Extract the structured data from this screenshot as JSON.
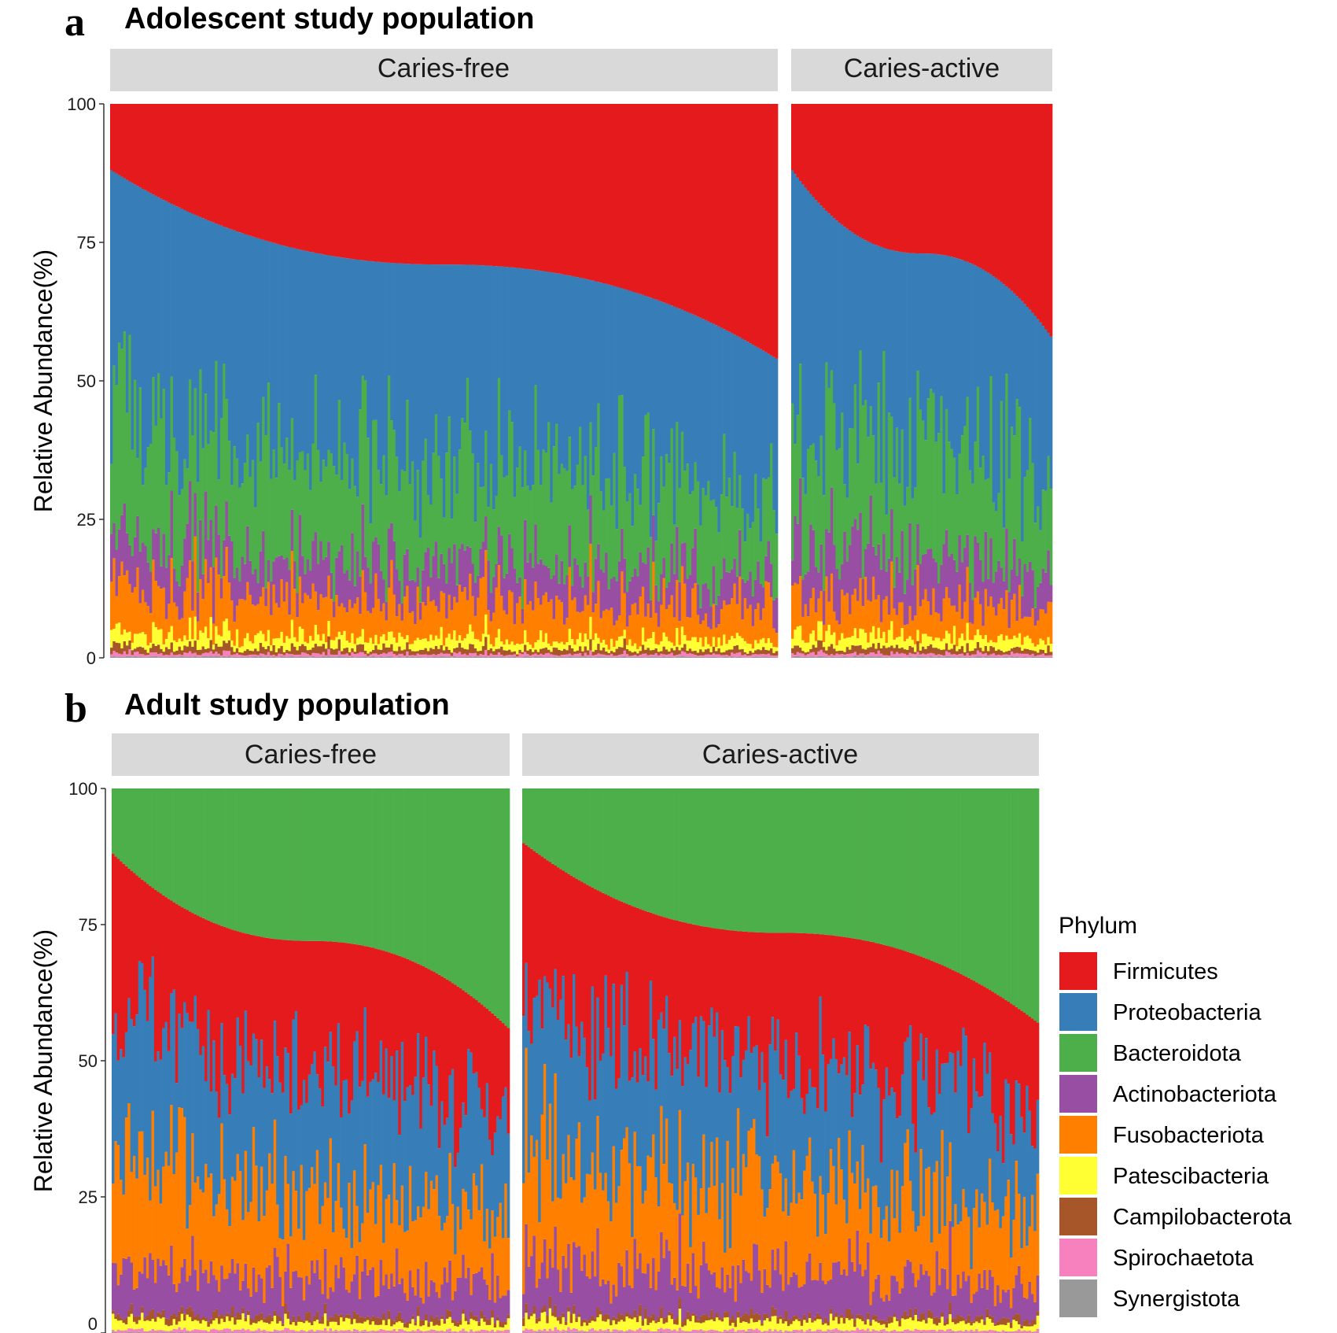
{
  "chart_data": [
    {
      "type": "bar",
      "stacked": true,
      "panel_letter": "a",
      "title": "Adolescent study population",
      "ylabel": "Relative Abundance(%)",
      "ylim": [
        0,
        100
      ],
      "yticks": [
        "0",
        "25",
        "50",
        "75",
        "100"
      ],
      "facets": [
        {
          "label": "Caries-free",
          "samples": 255,
          "firmicutes_sorted_min": 12,
          "firmicutes_sorted_max": 46,
          "mean_composition": {
            "Firmicutes": 28,
            "Proteobacteria": 36,
            "Bacteroidota": 19,
            "Actinobacteriota": 7,
            "Fusobacteriota": 7,
            "Patescibacteria": 2,
            "Campilobacterota": 1,
            "Spirochaetota": 0.5,
            "Synergistota": 0.2
          }
        },
        {
          "label": "Caries-active",
          "samples": 100,
          "firmicutes_sorted_min": 12,
          "firmicutes_sorted_max": 42,
          "mean_composition": {
            "Firmicutes": 28,
            "Proteobacteria": 36,
            "Bacteroidota": 19,
            "Actinobacteriota": 8,
            "Fusobacteriota": 6,
            "Patescibacteria": 2,
            "Campilobacterota": 1,
            "Spirochaetota": 0.5,
            "Synergistota": 0.2
          }
        }
      ]
    },
    {
      "type": "bar",
      "stacked": true,
      "panel_letter": "b",
      "title": "Adult study population",
      "ylabel": "Relative Abundance(%)",
      "ylim": [
        0,
        100
      ],
      "yticks": [
        "0",
        "25",
        "50",
        "75",
        "100"
      ],
      "facets": [
        {
          "label": "Caries-free",
          "samples": 150,
          "bacteroidota_sorted_min": 12,
          "bacteroidota_sorted_max": 44,
          "mean_composition": {
            "Bacteroidota": 31,
            "Firmicutes": 22,
            "Proteobacteria": 22,
            "Fusobacteriota": 15,
            "Actinobacteriota": 7,
            "Patescibacteria": 1.5,
            "Campilobacterota": 1,
            "Spirochaetota": 0.4,
            "Synergistota": 0.1
          }
        },
        {
          "label": "Caries-active",
          "samples": 195,
          "bacteroidota_sorted_min": 10,
          "bacteroidota_sorted_max": 43,
          "mean_composition": {
            "Bacteroidota": 31,
            "Firmicutes": 22,
            "Proteobacteria": 22,
            "Fusobacteriota": 15,
            "Actinobacteriota": 7,
            "Patescibacteria": 1.5,
            "Campilobacterota": 1,
            "Spirochaetota": 0.4,
            "Synergistota": 0.1
          }
        }
      ]
    }
  ],
  "legend": {
    "title": "Phylum",
    "items": [
      {
        "name": "Firmicutes",
        "color": "#E41A1C"
      },
      {
        "name": "Proteobacteria",
        "color": "#377EB8"
      },
      {
        "name": "Bacteroidota",
        "color": "#4DAF4A"
      },
      {
        "name": "Actinobacteriota",
        "color": "#984EA3"
      },
      {
        "name": "Fusobacteriota",
        "color": "#FF7F00"
      },
      {
        "name": "Patescibacteria",
        "color": "#FFFF33"
      },
      {
        "name": "Campilobacterota",
        "color": "#A65628"
      },
      {
        "name": "Spirochaetota",
        "color": "#F781BF"
      },
      {
        "name": "Synergistota",
        "color": "#999999"
      }
    ]
  },
  "colors": {
    "strip_background": "#D9D9D9"
  }
}
